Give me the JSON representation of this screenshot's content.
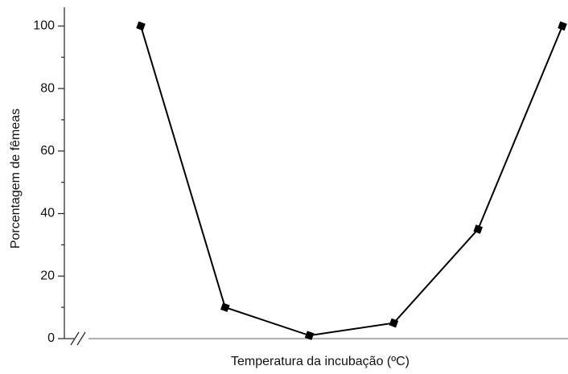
{
  "chart_data": {
    "type": "line",
    "y_label": "Porcentagem de fêmeas",
    "x_label": "Temperatura da incubação (ºC)",
    "categories": [
      null,
      null,
      null,
      null,
      null,
      null
    ],
    "series": [
      {
        "name": null,
        "color": "#000000",
        "values": [
          100,
          10,
          1,
          5,
          35,
          100
        ]
      }
    ],
    "ylim": [
      0,
      106
    ],
    "yticks": [
      0,
      20,
      40,
      60,
      80,
      100
    ],
    "yminor_ticks": [
      10,
      30,
      50,
      70,
      90
    ],
    "grid": false
  }
}
